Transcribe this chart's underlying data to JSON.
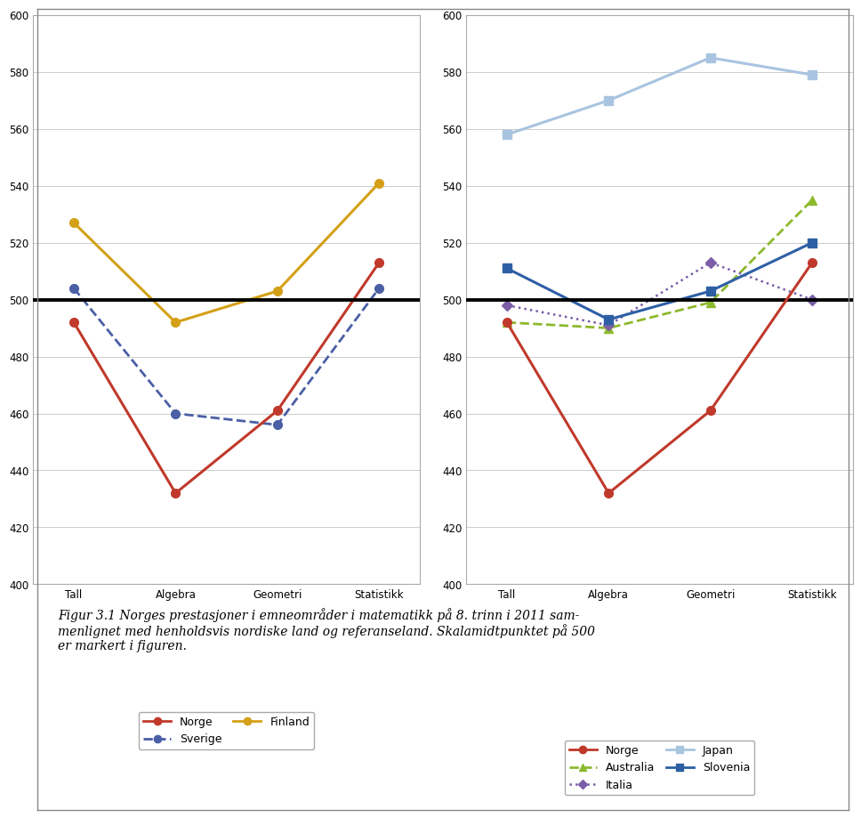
{
  "categories": [
    "Tall",
    "Algebra",
    "Geometri",
    "Statistikk"
  ],
  "left_chart": {
    "norge": [
      492,
      432,
      461,
      513
    ],
    "sverige": [
      504,
      460,
      456,
      504
    ],
    "finland": [
      527,
      492,
      503,
      541
    ]
  },
  "right_chart": {
    "norge": [
      492,
      432,
      461,
      513
    ],
    "australia": [
      492,
      490,
      499,
      535
    ],
    "italia": [
      498,
      491,
      513,
      500
    ],
    "japan": [
      558,
      570,
      585,
      579
    ],
    "slovenia": [
      511,
      493,
      503,
      520
    ]
  },
  "colors": {
    "norge": "#C0392B",
    "sverige": "#4A5FA5",
    "finland": "#D4A017",
    "australia": "#8DB92E",
    "italia": "#7B5EA7",
    "japan": "#A8C4E0",
    "slovenia": "#2E5FA5"
  },
  "ylim": [
    400,
    600
  ],
  "yticks": [
    400,
    420,
    440,
    460,
    480,
    500,
    520,
    540,
    560,
    580,
    600
  ],
  "hline": 500,
  "fig_caption": "Figur 3.1 Norges prestasjoner i emneområder i matematikk på 8. trinn i 2011 sam-\nmenlignet med henholdsvis nordiske land og referanseland. Skalamidtpunktet på 500\ner markert i figuren.",
  "background_color": "#FFFFFF",
  "plot_bg": "#FFFFFF"
}
